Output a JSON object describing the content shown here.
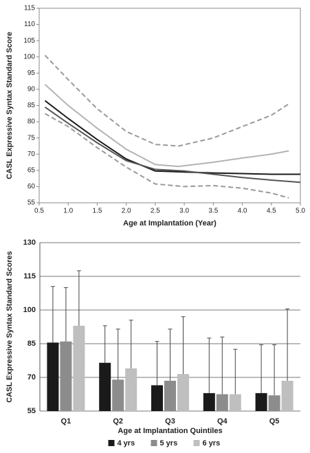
{
  "chart_data": [
    {
      "type": "line",
      "xlabel": "Age at Implantation (Year)",
      "ylabel": "CASL Expressive Syntax Standard Score",
      "xlim": [
        0.5,
        5.0
      ],
      "ylim": [
        55,
        115
      ],
      "xticks": [
        0.5,
        {
          "value": 1,
          "label": "1.0"
        },
        1.5,
        {
          "value": 2,
          "label": "2.0"
        },
        2.5,
        {
          "value": 3,
          "label": "3.0"
        },
        3.5,
        {
          "value": 4,
          "label": "4.0"
        },
        4.5,
        {
          "value": 5,
          "label": "5.0"
        }
      ],
      "yticks": [
        55,
        60,
        65,
        70,
        75,
        80,
        85,
        90,
        95,
        100,
        105,
        110,
        115
      ],
      "grid": false,
      "series": [
        {
          "color": "#999999",
          "dash": true,
          "x": [
            0.6,
            1.0,
            1.5,
            2.0,
            2.5,
            2.9,
            3.5,
            4.0,
            4.5,
            4.8
          ],
          "values": [
            100.5,
            93,
            84,
            77,
            73,
            72.5,
            75,
            78.5,
            82,
            85.5
          ]
        },
        {
          "color": "#b3b3b3",
          "dash": false,
          "x": [
            0.6,
            1.0,
            1.5,
            2.0,
            2.5,
            2.9,
            3.5,
            4.0,
            4.5,
            4.8
          ],
          "values": [
            91.5,
            85,
            78,
            71.5,
            66.8,
            66.2,
            67.5,
            68.8,
            70,
            71
          ]
        },
        {
          "color": "#1a1a1a",
          "dash": false,
          "x": [
            0.6,
            1.0,
            1.5,
            2.0,
            2.5,
            3.0,
            3.5,
            4.0,
            4.5,
            5.0
          ],
          "values": [
            86.5,
            81,
            74.5,
            68.5,
            64.8,
            64.5,
            64.2,
            64,
            63.8,
            63.8
          ]
        },
        {
          "color": "#555555",
          "dash": false,
          "x": [
            0.6,
            1.0,
            1.5,
            2.0,
            2.5,
            3.0,
            3.5,
            4.0,
            4.5,
            5.0
          ],
          "values": [
            84.5,
            79.5,
            73.5,
            68,
            65.3,
            64.8,
            63.8,
            62.8,
            62,
            61.3
          ]
        },
        {
          "color": "#999999",
          "dash": true,
          "x": [
            0.6,
            1.0,
            1.5,
            2.0,
            2.5,
            3.0,
            3.5,
            4.0,
            4.5,
            4.8
          ],
          "values": [
            82.5,
            78.5,
            72,
            66,
            60.8,
            60,
            60.3,
            59.5,
            58,
            56.5
          ]
        }
      ]
    },
    {
      "type": "bar",
      "xlabel": "Age at Implantation Quintiles",
      "ylabel": "CASL Expressive Syntax Standard Scores",
      "categories": [
        "Q1",
        "Q2",
        "Q3",
        "Q4",
        "Q5"
      ],
      "ylim": [
        55,
        130
      ],
      "yticks": [
        55,
        70,
        85,
        100,
        115,
        130
      ],
      "grid": true,
      "legend": "bottom",
      "series": [
        {
          "name": "4 yrs",
          "color": "#1a1a1a",
          "values": [
            85.5,
            76.5,
            66.5,
            63,
            63
          ],
          "errors": [
            25,
            16.5,
            19.5,
            24.5,
            21.5
          ]
        },
        {
          "name": "5 yrs",
          "color": "#8c8c8c",
          "values": [
            86,
            69,
            68.5,
            62.5,
            62
          ],
          "errors": [
            24,
            22.5,
            23,
            25.5,
            22.5
          ]
        },
        {
          "name": "6 yrs",
          "color": "#bfbfbf",
          "values": [
            93,
            74,
            71.5,
            62.5,
            68.5
          ],
          "errors": [
            24.5,
            21.5,
            25.5,
            20,
            32
          ]
        }
      ]
    }
  ]
}
